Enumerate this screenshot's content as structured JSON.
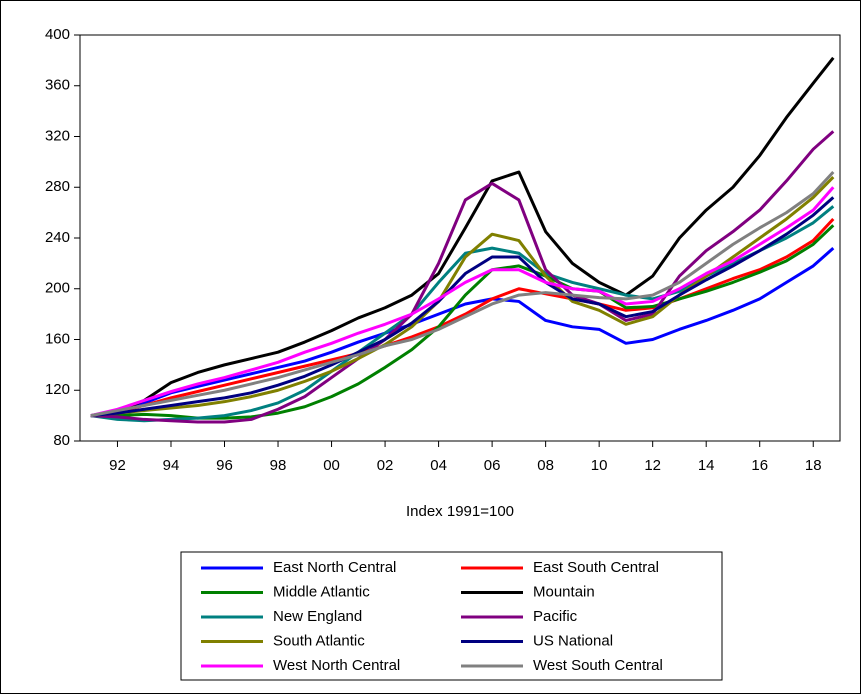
{
  "chart_data": {
    "type": "line",
    "x_label": "Index 1991=100",
    "x": [
      1991,
      1992,
      1993,
      1994,
      1995,
      1996,
      1997,
      1998,
      1999,
      2000,
      2001,
      2002,
      2003,
      2004,
      2005,
      2006,
      2007,
      2008,
      2009,
      2010,
      2011,
      2012,
      2013,
      2014,
      2015,
      2016,
      2017,
      2018,
      2018.75
    ],
    "xlim": [
      1990.6,
      2019
    ],
    "xticks": [
      {
        "value": 1992,
        "label": "92"
      },
      {
        "value": 1994,
        "label": "94"
      },
      {
        "value": 1996,
        "label": "96"
      },
      {
        "value": 1998,
        "label": "98"
      },
      {
        "value": 2000,
        "label": "00"
      },
      {
        "value": 2002,
        "label": "02"
      },
      {
        "value": 2004,
        "label": "04"
      },
      {
        "value": 2006,
        "label": "06"
      },
      {
        "value": 2008,
        "label": "08"
      },
      {
        "value": 2010,
        "label": "10"
      },
      {
        "value": 2012,
        "label": "12"
      },
      {
        "value": 2014,
        "label": "14"
      },
      {
        "value": 2016,
        "label": "16"
      },
      {
        "value": 2018,
        "label": "18"
      }
    ],
    "ylim": [
      80,
      400
    ],
    "yticks": [
      80,
      120,
      160,
      200,
      240,
      280,
      320,
      360,
      400
    ],
    "legend": "bottom",
    "series": [
      {
        "name": "East North Central",
        "color": "#0000ff",
        "values": [
          100,
          104,
          110,
          118,
          123,
          128,
          133,
          138,
          143,
          150,
          158,
          165,
          172,
          180,
          188,
          192,
          190,
          175,
          170,
          168,
          157,
          160,
          168,
          175,
          183,
          192,
          205,
          218,
          232
        ]
      },
      {
        "name": "East South Central",
        "color": "#ff0000",
        "values": [
          100,
          103,
          108,
          114,
          119,
          124,
          129,
          134,
          139,
          144,
          149,
          155,
          162,
          170,
          180,
          192,
          200,
          196,
          192,
          188,
          183,
          185,
          192,
          200,
          208,
          215,
          225,
          238,
          255
        ]
      },
      {
        "name": "Middle Atlantic",
        "color": "#008000",
        "values": [
          100,
          100,
          101,
          100,
          98,
          98,
          99,
          102,
          107,
          115,
          125,
          138,
          152,
          170,
          195,
          215,
          218,
          210,
          200,
          198,
          185,
          186,
          192,
          198,
          205,
          213,
          222,
          235,
          250
        ]
      },
      {
        "name": "Mountain",
        "color": "#000000",
        "values": [
          100,
          103,
          112,
          126,
          134,
          140,
          145,
          150,
          158,
          167,
          177,
          185,
          195,
          212,
          248,
          285,
          292,
          245,
          220,
          205,
          195,
          210,
          240,
          262,
          280,
          305,
          335,
          362,
          382
        ]
      },
      {
        "name": "New England",
        "color": "#008080",
        "values": [
          100,
          97,
          96,
          97,
          98,
          100,
          104,
          110,
          120,
          135,
          150,
          165,
          180,
          205,
          228,
          232,
          228,
          212,
          205,
          200,
          195,
          192,
          198,
          210,
          220,
          230,
          240,
          252,
          265
        ]
      },
      {
        "name": "Pacific",
        "color": "#800080",
        "values": [
          100,
          99,
          97,
          96,
          95,
          95,
          97,
          105,
          115,
          130,
          145,
          160,
          180,
          220,
          270,
          283,
          270,
          215,
          195,
          188,
          175,
          180,
          210,
          230,
          245,
          262,
          285,
          310,
          324
        ]
      },
      {
        "name": "South Atlantic",
        "color": "#808000",
        "values": [
          100,
          102,
          104,
          106,
          108,
          111,
          115,
          120,
          127,
          135,
          145,
          156,
          170,
          190,
          225,
          243,
          238,
          210,
          190,
          183,
          172,
          178,
          195,
          210,
          225,
          240,
          255,
          272,
          288
        ]
      },
      {
        "name": "US National",
        "color": "#000080",
        "values": [
          100,
          102,
          105,
          108,
          111,
          114,
          118,
          124,
          131,
          140,
          150,
          160,
          173,
          190,
          212,
          225,
          225,
          205,
          192,
          188,
          178,
          182,
          195,
          207,
          218,
          230,
          243,
          258,
          272
        ]
      },
      {
        "name": "West North Central",
        "color": "#ff00ff",
        "values": [
          100,
          105,
          112,
          119,
          125,
          130,
          136,
          142,
          150,
          157,
          165,
          172,
          180,
          192,
          205,
          215,
          215,
          205,
          200,
          198,
          188,
          190,
          200,
          212,
          222,
          235,
          248,
          262,
          280
        ]
      },
      {
        "name": "West South Central",
        "color": "#808080",
        "values": [
          100,
          104,
          108,
          112,
          116,
          120,
          125,
          130,
          136,
          142,
          148,
          155,
          160,
          168,
          178,
          188,
          195,
          197,
          195,
          193,
          192,
          195,
          205,
          220,
          235,
          248,
          260,
          275,
          292
        ]
      }
    ]
  }
}
